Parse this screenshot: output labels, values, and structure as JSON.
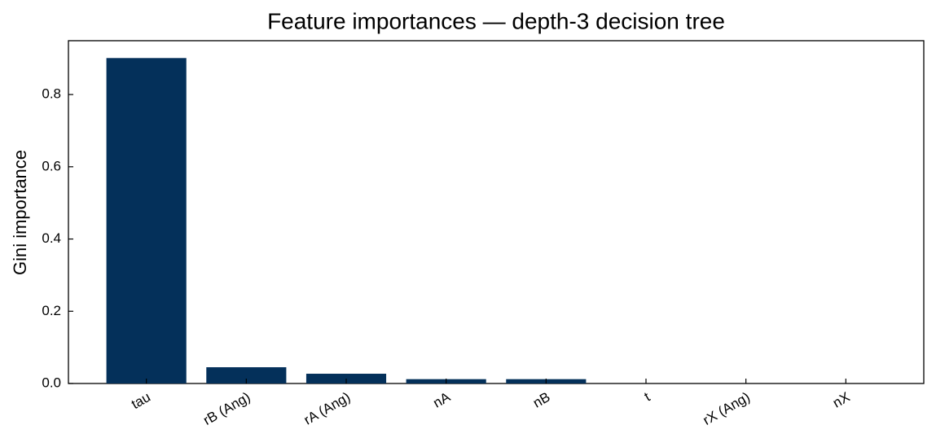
{
  "chart_data": {
    "type": "bar",
    "title": "Feature importances — depth-3 decision tree",
    "y_label": "Gini importance",
    "categories": [
      "tau",
      "rB (Ang)",
      "rA (Ang)",
      "nA",
      "nB",
      "t",
      "rX (Ang)",
      "nX"
    ],
    "values": [
      0.901,
      0.045,
      0.027,
      0.012,
      0.012,
      0,
      0,
      0
    ],
    "color": "#04305a",
    "ylim": [
      0,
      0.949
    ],
    "yticks": [
      {
        "value": 0,
        "label": "0.0"
      },
      0.2,
      0.4,
      0.6,
      0.8
    ],
    "grid": false
  }
}
